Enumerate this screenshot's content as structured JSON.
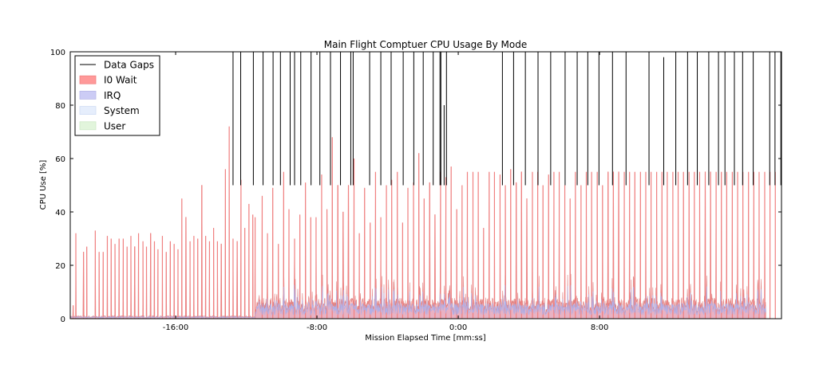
{
  "chart_data": {
    "type": "area",
    "title": "Main Flight Comptuer CPU Usage By Mode",
    "xlabel": "Mission Elapsed Time [mm:ss]",
    "ylabel": "CPU Use [%]",
    "xlim": [
      -1318,
      1098
    ],
    "ylim": [
      0,
      100
    ],
    "xticks": [
      {
        "value": -960,
        "label": "-16:00"
      },
      {
        "value": -480,
        "label": "-8:00"
      },
      {
        "value": 0,
        "label": "0:00"
      },
      {
        "value": 480,
        "label": "8:00"
      }
    ],
    "yticks": [
      0,
      20,
      40,
      60,
      80,
      100
    ],
    "legend_position": "top-left",
    "legend": [
      {
        "label": "Data Gaps",
        "kind": "line",
        "color": "#000000"
      },
      {
        "label": "I0 Wait",
        "kind": "patch",
        "color": "#ff9999"
      },
      {
        "label": "IRQ",
        "kind": "patch",
        "color": "#ccccf5"
      },
      {
        "label": "System",
        "kind": "patch",
        "color": "#e6eefc"
      },
      {
        "label": "User",
        "kind": "patch",
        "color": "#e2f5dc"
      }
    ],
    "series": [
      {
        "name": "I0 Wait",
        "color": "#ff9999",
        "x": [
          -1308,
          -1299,
          -1285,
          -1273,
          -1262,
          -1246,
          -1233,
          -1220,
          -1206,
          -1192,
          -1179,
          -1166,
          -1152,
          -1138,
          -1125,
          -1112,
          -1099,
          -1086,
          -1071,
          -1059,
          -1045,
          -1032,
          -1020,
          -1005,
          -992,
          -978,
          -965,
          -952,
          -939,
          -925,
          -911,
          -898,
          -885,
          -871,
          -858,
          -845,
          -831,
          -818,
          -805,
          -791,
          -778,
          -765,
          -751,
          -738,
          -725,
          -711,
          -698,
          -690,
          -666,
          -648,
          -630,
          -611,
          -593,
          -575,
          -556,
          -538,
          -519,
          -501,
          -483,
          -464,
          -446,
          -428,
          -409,
          -391,
          -373,
          -354,
          -336,
          -318,
          -299,
          -281,
          -263,
          -244,
          -226,
          -207,
          -189,
          -171,
          -152,
          -134,
          -116,
          -97,
          -79,
          -60,
          -42,
          -24,
          -5,
          13,
          31,
          50,
          68,
          86,
          105,
          123,
          142,
          160,
          178,
          197,
          215,
          233,
          252,
          270,
          288,
          307,
          325,
          343,
          362,
          380,
          398,
          417,
          435,
          453,
          472,
          490,
          509,
          527,
          545,
          564,
          582,
          600,
          619,
          637,
          655,
          674,
          692,
          710,
          729,
          747,
          765,
          784,
          802,
          820,
          839,
          857,
          876,
          894,
          912,
          931,
          949,
          967,
          986,
          1004,
          1022,
          1041,
          1059,
          1077
        ],
        "peaks": [
          5,
          32,
          0,
          25,
          27,
          0,
          33,
          25,
          25,
          31,
          30,
          28,
          30,
          30,
          27,
          31,
          27,
          32,
          29,
          27,
          32,
          29,
          26,
          31,
          25,
          29,
          28,
          26,
          45,
          38,
          29,
          31,
          30,
          50,
          31,
          29,
          34,
          29,
          28,
          56,
          72,
          30,
          29,
          52,
          34,
          43,
          39,
          38,
          46,
          32,
          49,
          28,
          55,
          41,
          30,
          39,
          51,
          38,
          38,
          54,
          41,
          68,
          50,
          40,
          50,
          60,
          32,
          49,
          36,
          55,
          38,
          50,
          52,
          55,
          36,
          49,
          51,
          62,
          45,
          51,
          39,
          55,
          53,
          57,
          41,
          50,
          55,
          55,
          55,
          34,
          55,
          55,
          54,
          50,
          56,
          51,
          55,
          45,
          55,
          55,
          50,
          54,
          55,
          55,
          50,
          45,
          55,
          50,
          55,
          55,
          55,
          50,
          55,
          55,
          55,
          55,
          55,
          55,
          55,
          55,
          55,
          55,
          55,
          55,
          55,
          55,
          55,
          55,
          55,
          55,
          55,
          55,
          55,
          55,
          55,
          55,
          55,
          55,
          55,
          55,
          55,
          55,
          55,
          55,
          55,
          55
        ],
        "baseline_before": 1,
        "baseline_after": 6
      },
      {
        "name": "IRQ",
        "color": "#ccccf5",
        "typical": 4
      },
      {
        "name": "System",
        "color": "#e6eefc",
        "typical": 3
      },
      {
        "name": "User",
        "color": "#e2f5dc",
        "typical": 2
      }
    ],
    "data_gaps": {
      "name": "Data Gaps",
      "color": "#000000",
      "x": [
        -765,
        -739,
        -696,
        -663,
        -629,
        -604,
        -571,
        -556,
        -535,
        -500,
        -470,
        -434,
        -400,
        -365,
        -357,
        -301,
        -263,
        -228,
        -187,
        -151,
        -119,
        -85,
        -62,
        -59,
        -48,
        -40,
        150,
        188,
        228,
        271,
        314,
        363,
        404,
        440,
        478,
        524,
        570,
        648,
        698,
        739,
        779,
        812,
        851,
        884,
        906,
        938,
        966,
        1002,
        1058,
        1076,
        1096
      ],
      "top": [
        100,
        100,
        100,
        100,
        100,
        100,
        100,
        100,
        100,
        100,
        100,
        100,
        100,
        100,
        100,
        100,
        100,
        100,
        100,
        100,
        100,
        100,
        100,
        100,
        80,
        100,
        100,
        100,
        100,
        100,
        100,
        100,
        100,
        100,
        100,
        100,
        100,
        100,
        98,
        100,
        100,
        100,
        100,
        100,
        100,
        100,
        100,
        100,
        100,
        100,
        100
      ],
      "bottom": 50
    }
  }
}
